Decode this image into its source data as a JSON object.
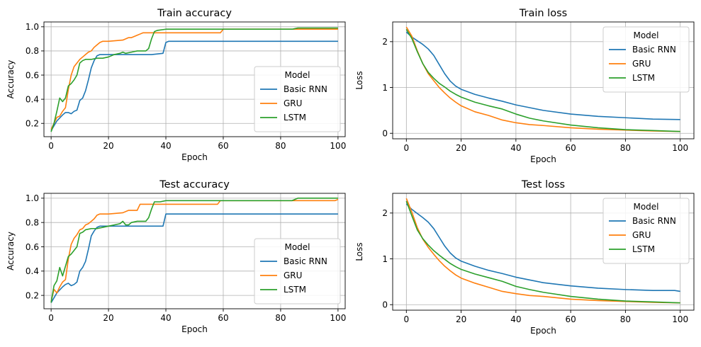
{
  "chart_data": [
    {
      "type": "line",
      "title": "Train accuracy",
      "xlabel": "Epoch",
      "ylabel": "Accuracy",
      "xlim": [
        -2.5,
        102.5
      ],
      "ylim": [
        0.09,
        1.04
      ],
      "xticks": [
        0,
        20,
        40,
        60,
        80,
        100
      ],
      "xtick_labels": [
        "0",
        "20",
        "40",
        "60",
        "80",
        "100"
      ],
      "yticks": [
        0.2,
        0.4,
        0.6,
        0.8,
        1.0
      ],
      "ytick_labels": [
        "0.2",
        "0.4",
        "0.6",
        "0.8",
        "1.0"
      ],
      "grid": true,
      "legend": {
        "title": "Model",
        "placement": "lower-right"
      },
      "series": [
        {
          "name": "Basic RNN",
          "color": "#1f77b4",
          "x": [
            0,
            2,
            4,
            5,
            6,
            7,
            8,
            9,
            10,
            11,
            12,
            13,
            14,
            15,
            16,
            17,
            18,
            20,
            25,
            30,
            35,
            39,
            40,
            41,
            50,
            60,
            70,
            80,
            90,
            100
          ],
          "y": [
            0.14,
            0.22,
            0.27,
            0.29,
            0.29,
            0.28,
            0.3,
            0.31,
            0.39,
            0.41,
            0.47,
            0.56,
            0.66,
            0.72,
            0.76,
            0.77,
            0.77,
            0.77,
            0.77,
            0.77,
            0.77,
            0.78,
            0.87,
            0.88,
            0.88,
            0.88,
            0.88,
            0.88,
            0.88,
            0.88
          ]
        },
        {
          "name": "GRU",
          "color": "#ff7f0e",
          "x": [
            0,
            1,
            2,
            3,
            4,
            5,
            6,
            7,
            8,
            9,
            10,
            11,
            12,
            13,
            14,
            15,
            16,
            17,
            18,
            20,
            25,
            27,
            28,
            30,
            31,
            32,
            40,
            55,
            59,
            60,
            85,
            86,
            100
          ],
          "y": [
            0.15,
            0.2,
            0.25,
            0.26,
            0.3,
            0.33,
            0.48,
            0.6,
            0.67,
            0.7,
            0.73,
            0.75,
            0.77,
            0.79,
            0.8,
            0.83,
            0.85,
            0.87,
            0.88,
            0.88,
            0.89,
            0.91,
            0.91,
            0.93,
            0.94,
            0.95,
            0.95,
            0.95,
            0.95,
            0.98,
            0.98,
            0.98,
            0.98
          ]
        },
        {
          "name": "LSTM",
          "color": "#2ca02c",
          "x": [
            0,
            1,
            2,
            3,
            4,
            5,
            6,
            7,
            8,
            9,
            10,
            11,
            12,
            14,
            16,
            18,
            20,
            22,
            24,
            25,
            26,
            28,
            30,
            33,
            34,
            35,
            36,
            37,
            40,
            50,
            59,
            60,
            84,
            86,
            100
          ],
          "y": [
            0.13,
            0.2,
            0.3,
            0.41,
            0.38,
            0.41,
            0.51,
            0.53,
            0.56,
            0.6,
            0.7,
            0.72,
            0.73,
            0.73,
            0.74,
            0.74,
            0.75,
            0.77,
            0.78,
            0.79,
            0.78,
            0.79,
            0.8,
            0.8,
            0.82,
            0.9,
            0.96,
            0.97,
            0.98,
            0.98,
            0.98,
            0.98,
            0.98,
            0.99,
            0.99
          ]
        }
      ]
    },
    {
      "type": "line",
      "title": "Train loss",
      "xlabel": "Epoch",
      "ylabel": "Loss",
      "xlim": [
        -5,
        105
      ],
      "ylim": [
        -0.12,
        2.43
      ],
      "xticks": [
        0,
        20,
        40,
        60,
        80,
        100
      ],
      "xtick_labels": [
        "0",
        "20",
        "40",
        "60",
        "80",
        "100"
      ],
      "yticks": [
        0,
        1,
        2
      ],
      "ytick_labels": [
        "0",
        "1",
        "2"
      ],
      "grid": true,
      "legend": {
        "title": "Model",
        "placement": "top-right"
      },
      "series": [
        {
          "name": "Basic RNN",
          "color": "#1f77b4",
          "x": [
            0,
            2,
            4,
            6,
            8,
            10,
            12,
            14,
            16,
            18,
            20,
            25,
            30,
            35,
            40,
            45,
            50,
            60,
            70,
            80,
            90,
            100
          ],
          "y": [
            2.21,
            2.1,
            2.02,
            1.94,
            1.84,
            1.7,
            1.5,
            1.3,
            1.14,
            1.03,
            0.96,
            0.85,
            0.77,
            0.7,
            0.62,
            0.56,
            0.5,
            0.42,
            0.37,
            0.34,
            0.31,
            0.3
          ]
        },
        {
          "name": "GRU",
          "color": "#ff7f0e",
          "x": [
            0,
            2,
            4,
            6,
            8,
            10,
            12,
            14,
            16,
            18,
            20,
            25,
            30,
            35,
            40,
            45,
            50,
            60,
            70,
            80,
            90,
            100
          ],
          "y": [
            2.32,
            2.12,
            1.8,
            1.52,
            1.3,
            1.15,
            1.0,
            0.88,
            0.77,
            0.68,
            0.6,
            0.47,
            0.39,
            0.29,
            0.23,
            0.19,
            0.17,
            0.12,
            0.09,
            0.07,
            0.05,
            0.04
          ]
        },
        {
          "name": "LSTM",
          "color": "#2ca02c",
          "x": [
            0,
            2,
            4,
            6,
            8,
            10,
            12,
            14,
            16,
            18,
            20,
            25,
            30,
            35,
            40,
            45,
            50,
            60,
            70,
            80,
            90,
            100
          ],
          "y": [
            2.27,
            2.07,
            1.78,
            1.52,
            1.33,
            1.2,
            1.09,
            1.01,
            0.92,
            0.85,
            0.79,
            0.68,
            0.6,
            0.53,
            0.42,
            0.33,
            0.27,
            0.18,
            0.12,
            0.08,
            0.06,
            0.04
          ]
        }
      ]
    },
    {
      "type": "line",
      "title": "Test accuracy",
      "xlabel": "Epoch",
      "ylabel": "Accuracy",
      "xlim": [
        -2.5,
        102.5
      ],
      "ylim": [
        0.09,
        1.04
      ],
      "xticks": [
        0,
        20,
        40,
        60,
        80,
        100
      ],
      "xtick_labels": [
        "0",
        "20",
        "40",
        "60",
        "80",
        "100"
      ],
      "yticks": [
        0.2,
        0.4,
        0.6,
        0.8,
        1.0
      ],
      "ytick_labels": [
        "0.2",
        "0.4",
        "0.6",
        "0.8",
        "1.0"
      ],
      "grid": true,
      "legend": {
        "title": "Model",
        "placement": "lower-right"
      },
      "series": [
        {
          "name": "Basic RNN",
          "color": "#1f77b4",
          "x": [
            0,
            2,
            4,
            5,
            6,
            7,
            8,
            9,
            10,
            11,
            12,
            13,
            14,
            15,
            16,
            17,
            18,
            20,
            25,
            30,
            35,
            39,
            40,
            41,
            50,
            60,
            70,
            80,
            90,
            100
          ],
          "y": [
            0.14,
            0.22,
            0.27,
            0.29,
            0.3,
            0.28,
            0.29,
            0.31,
            0.4,
            0.43,
            0.48,
            0.58,
            0.69,
            0.73,
            0.76,
            0.77,
            0.77,
            0.77,
            0.77,
            0.77,
            0.77,
            0.77,
            0.87,
            0.87,
            0.87,
            0.87,
            0.87,
            0.87,
            0.87,
            0.87
          ]
        },
        {
          "name": "GRU",
          "color": "#ff7f0e",
          "x": [
            0,
            1,
            2,
            3,
            4,
            5,
            6,
            7,
            8,
            9,
            10,
            11,
            12,
            13,
            14,
            15,
            16,
            17,
            18,
            20,
            25,
            27,
            28,
            30,
            31,
            40,
            55,
            58,
            59,
            85,
            99,
            100
          ],
          "y": [
            0.15,
            0.25,
            0.22,
            0.27,
            0.31,
            0.33,
            0.5,
            0.62,
            0.67,
            0.7,
            0.74,
            0.75,
            0.78,
            0.79,
            0.81,
            0.83,
            0.86,
            0.87,
            0.87,
            0.87,
            0.88,
            0.9,
            0.9,
            0.9,
            0.95,
            0.95,
            0.95,
            0.95,
            0.98,
            0.98,
            0.98,
            0.99
          ]
        },
        {
          "name": "LSTM",
          "color": "#2ca02c",
          "x": [
            0,
            1,
            2,
            3,
            4,
            5,
            6,
            7,
            8,
            9,
            10,
            11,
            12,
            14,
            16,
            18,
            20,
            22,
            24,
            25,
            26,
            27,
            28,
            30,
            33,
            34,
            35,
            36,
            38,
            40,
            50,
            59,
            60,
            84,
            86,
            100
          ],
          "y": [
            0.14,
            0.28,
            0.32,
            0.43,
            0.36,
            0.44,
            0.52,
            0.54,
            0.57,
            0.6,
            0.71,
            0.72,
            0.74,
            0.75,
            0.75,
            0.76,
            0.77,
            0.78,
            0.79,
            0.81,
            0.78,
            0.78,
            0.8,
            0.81,
            0.81,
            0.84,
            0.91,
            0.97,
            0.97,
            0.98,
            0.98,
            0.98,
            0.98,
            0.98,
            1.0,
            1.0
          ]
        }
      ]
    },
    {
      "type": "line",
      "title": "Test loss",
      "xlabel": "Epoch",
      "ylabel": "Loss",
      "xlim": [
        -5,
        105
      ],
      "ylim": [
        -0.12,
        2.43
      ],
      "xticks": [
        0,
        20,
        40,
        60,
        80,
        100
      ],
      "xtick_labels": [
        "0",
        "20",
        "40",
        "60",
        "80",
        "100"
      ],
      "yticks": [
        0,
        1,
        2
      ],
      "ytick_labels": [
        "0",
        "1",
        "2"
      ],
      "grid": true,
      "legend": {
        "title": "Model",
        "placement": "top-right"
      },
      "series": [
        {
          "name": "Basic RNN",
          "color": "#1f77b4",
          "x": [
            0,
            2,
            4,
            6,
            8,
            10,
            12,
            14,
            16,
            18,
            20,
            25,
            30,
            35,
            40,
            45,
            50,
            60,
            70,
            80,
            90,
            98,
            100
          ],
          "y": [
            2.2,
            2.08,
            1.99,
            1.9,
            1.8,
            1.66,
            1.47,
            1.28,
            1.13,
            1.02,
            0.95,
            0.84,
            0.75,
            0.68,
            0.6,
            0.54,
            0.48,
            0.41,
            0.36,
            0.33,
            0.31,
            0.31,
            0.29
          ]
        },
        {
          "name": "GRU",
          "color": "#ff7f0e",
          "x": [
            0,
            2,
            4,
            6,
            8,
            10,
            12,
            14,
            16,
            18,
            20,
            25,
            30,
            35,
            40,
            45,
            50,
            60,
            70,
            80,
            90,
            100
          ],
          "y": [
            2.32,
            2.02,
            1.68,
            1.43,
            1.25,
            1.1,
            0.96,
            0.84,
            0.74,
            0.65,
            0.58,
            0.47,
            0.38,
            0.29,
            0.24,
            0.2,
            0.18,
            0.12,
            0.09,
            0.07,
            0.05,
            0.04
          ]
        },
        {
          "name": "LSTM",
          "color": "#2ca02c",
          "x": [
            0,
            2,
            4,
            6,
            8,
            10,
            12,
            14,
            16,
            18,
            20,
            25,
            30,
            35,
            40,
            45,
            50,
            60,
            70,
            80,
            90,
            100
          ],
          "y": [
            2.26,
            1.94,
            1.63,
            1.44,
            1.3,
            1.18,
            1.08,
            0.99,
            0.9,
            0.83,
            0.77,
            0.67,
            0.59,
            0.51,
            0.4,
            0.33,
            0.27,
            0.18,
            0.12,
            0.08,
            0.06,
            0.04
          ]
        }
      ]
    }
  ]
}
